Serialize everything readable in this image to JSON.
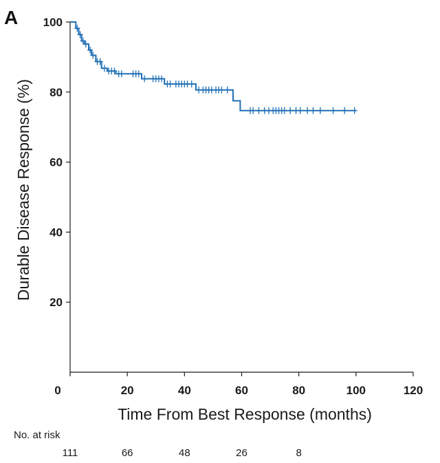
{
  "chart_data": {
    "type": "line",
    "panel_label": "A",
    "xlabel": "Time From Best Response (months)",
    "ylabel": "Durable Disease Response (%)",
    "xlim": [
      0,
      120
    ],
    "ylim": [
      0,
      100
    ],
    "x_ticks": [
      0,
      20,
      40,
      60,
      80,
      100,
      120
    ],
    "y_ticks": [
      20,
      40,
      60,
      80,
      100
    ],
    "grid": false,
    "series": [
      {
        "color": "#1f6fb5",
        "step": true,
        "points": [
          [
            0,
            100
          ],
          [
            2,
            100
          ],
          [
            2,
            98.2
          ],
          [
            3,
            98.2
          ],
          [
            3,
            96.4
          ],
          [
            4,
            96.4
          ],
          [
            4,
            94.6
          ],
          [
            5,
            94.6
          ],
          [
            5,
            93.7
          ],
          [
            6.5,
            93.7
          ],
          [
            6.5,
            92.0
          ],
          [
            7.5,
            92.0
          ],
          [
            7.5,
            90.5
          ],
          [
            9,
            90.5
          ],
          [
            9,
            88.7
          ],
          [
            11,
            88.7
          ],
          [
            11,
            86.8
          ],
          [
            13,
            86.8
          ],
          [
            13,
            86.0
          ],
          [
            16,
            86.0
          ],
          [
            16,
            85.2
          ],
          [
            25,
            85.2
          ],
          [
            25,
            83.8
          ],
          [
            33,
            83.8
          ],
          [
            33,
            82.3
          ],
          [
            44,
            82.3
          ],
          [
            44,
            80.6
          ],
          [
            57,
            80.6
          ],
          [
            57,
            77.5
          ],
          [
            59.5,
            77.5
          ],
          [
            59.5,
            74.7
          ],
          [
            100,
            74.7
          ]
        ],
        "censored": [
          [
            2.5,
            98.2
          ],
          [
            3.5,
            96.4
          ],
          [
            4.5,
            94.6
          ],
          [
            5.5,
            93.7
          ],
          [
            7,
            92.0
          ],
          [
            8,
            90.5
          ],
          [
            9.5,
            88.7
          ],
          [
            10.5,
            88.7
          ],
          [
            12,
            86.8
          ],
          [
            13.5,
            86.0
          ],
          [
            14.5,
            86.0
          ],
          [
            15.5,
            86.0
          ],
          [
            17,
            85.2
          ],
          [
            18,
            85.2
          ],
          [
            22,
            85.2
          ],
          [
            23,
            85.2
          ],
          [
            24,
            85.2
          ],
          [
            26,
            83.8
          ],
          [
            29,
            83.8
          ],
          [
            30,
            83.8
          ],
          [
            31,
            83.8
          ],
          [
            32,
            83.8
          ],
          [
            34,
            82.3
          ],
          [
            35,
            82.3
          ],
          [
            37,
            82.3
          ],
          [
            38,
            82.3
          ],
          [
            39,
            82.3
          ],
          [
            40,
            82.3
          ],
          [
            41,
            82.3
          ],
          [
            42.5,
            82.3
          ],
          [
            45,
            80.6
          ],
          [
            46.5,
            80.6
          ],
          [
            47.5,
            80.6
          ],
          [
            48.5,
            80.6
          ],
          [
            49.5,
            80.6
          ],
          [
            51,
            80.6
          ],
          [
            52,
            80.6
          ],
          [
            53,
            80.6
          ],
          [
            55,
            80.6
          ],
          [
            63,
            74.7
          ],
          [
            64,
            74.7
          ],
          [
            66,
            74.7
          ],
          [
            68,
            74.7
          ],
          [
            69.5,
            74.7
          ],
          [
            71,
            74.7
          ],
          [
            72,
            74.7
          ],
          [
            73,
            74.7
          ],
          [
            74,
            74.7
          ],
          [
            75,
            74.7
          ],
          [
            77,
            74.7
          ],
          [
            79,
            74.7
          ],
          [
            80.5,
            74.7
          ],
          [
            83,
            74.7
          ],
          [
            85,
            74.7
          ],
          [
            87.5,
            74.7
          ],
          [
            92,
            74.7
          ],
          [
            96,
            74.7
          ],
          [
            99.5,
            74.7
          ]
        ]
      }
    ],
    "risk_table": {
      "title": "No. at risk",
      "times": [
        0,
        20,
        40,
        60,
        80
      ],
      "values": [
        "111",
        "66",
        "48",
        "26",
        "8"
      ]
    }
  }
}
